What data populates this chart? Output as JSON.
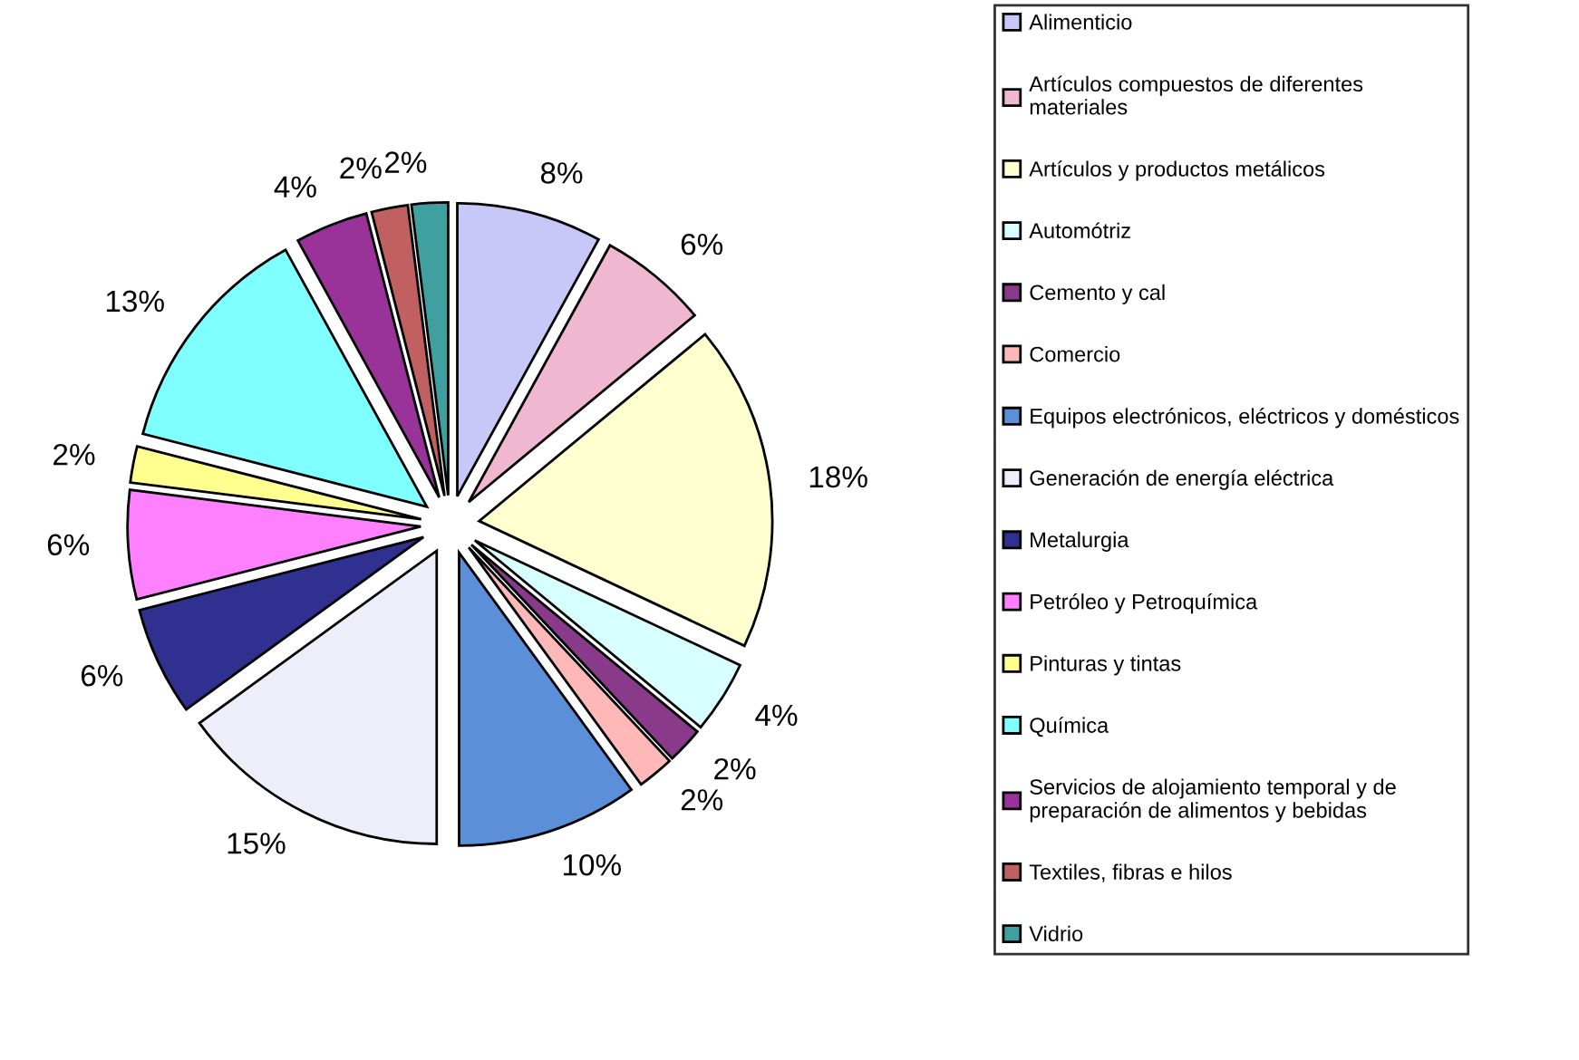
{
  "chart_data": {
    "type": "pie",
    "legend": "right",
    "value_labels": [
      "8%",
      "6%",
      "18%",
      "4%",
      "2%",
      "2%",
      "10%",
      "15%",
      "6%",
      "6%",
      "2%",
      "13%",
      "4%",
      "2%",
      "2%"
    ],
    "categories": [
      "Alimenticio",
      "Artículos compuestos de diferentes\nmateriales",
      "Artículos y productos metálicos",
      "Automótriz",
      "Cemento y cal",
      "Comercio",
      "Equipos electrónicos, eléctricos y domésticos",
      "Generación de energía eléctrica",
      "Metalurgia",
      "Petróleo y Petroquímica",
      "Pinturas y tintas",
      "Química",
      "Servicios de alojamiento temporal y de\npreparación de alimentos y bebidas",
      "Textiles, fibras e hilos",
      "Vidrio"
    ],
    "values": [
      8,
      6,
      18,
      4,
      2,
      2,
      10,
      15,
      6,
      6,
      2,
      13,
      4,
      2,
      2
    ],
    "colors": [
      "#c8c8f8",
      "#f0b8d0",
      "#ffffd0",
      "#d8ffff",
      "#8a3a8a",
      "#ffb8b8",
      "#5b8fd8",
      "#eeeefa",
      "#303090",
      "#ff80ff",
      "#ffff90",
      "#80ffff",
      "#993399",
      "#c06060",
      "#40a0a0"
    ]
  }
}
